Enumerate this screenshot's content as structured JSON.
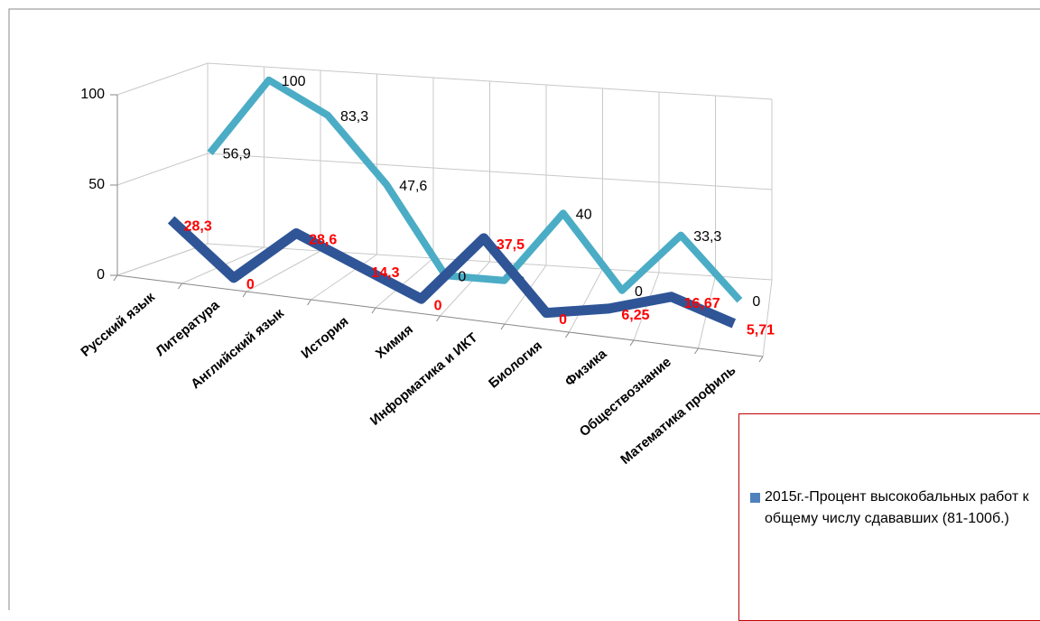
{
  "chart_data": {
    "type": "line3d",
    "categories": [
      "Русский язык",
      "Литература",
      "Английский язык",
      "История",
      "Химия",
      "Информатика и ИКТ",
      "Биология",
      "Физика",
      "Обществознание",
      "Математика профиль"
    ],
    "series": [
      {
        "name": "2015г.-Процент высокобальных работ к общему числу сдававших (81-100б.)",
        "color": "#2f5597",
        "values": [
          28.3,
          0,
          28.6,
          14.3,
          0,
          37.5,
          0,
          6.25,
          16.67,
          5.71
        ],
        "value_labels": [
          "28,3",
          "0",
          "28,6",
          "14,3",
          "0",
          "37,5",
          "0",
          "6,25",
          "16,67",
          "5,71"
        ]
      },
      {
        "color": "#4bacc6",
        "values": [
          56.9,
          100,
          83.3,
          47.6,
          0,
          0,
          40,
          0,
          33.3,
          0
        ],
        "value_labels": [
          "56,9",
          "100",
          "83,3",
          "47,6",
          "0",
          "0",
          "40",
          "0",
          "33,3",
          "0"
        ]
      }
    ],
    "ylim": [
      0,
      100
    ],
    "yticks": [
      0,
      50,
      100
    ],
    "grid": true,
    "legend": "bottom-right"
  }
}
